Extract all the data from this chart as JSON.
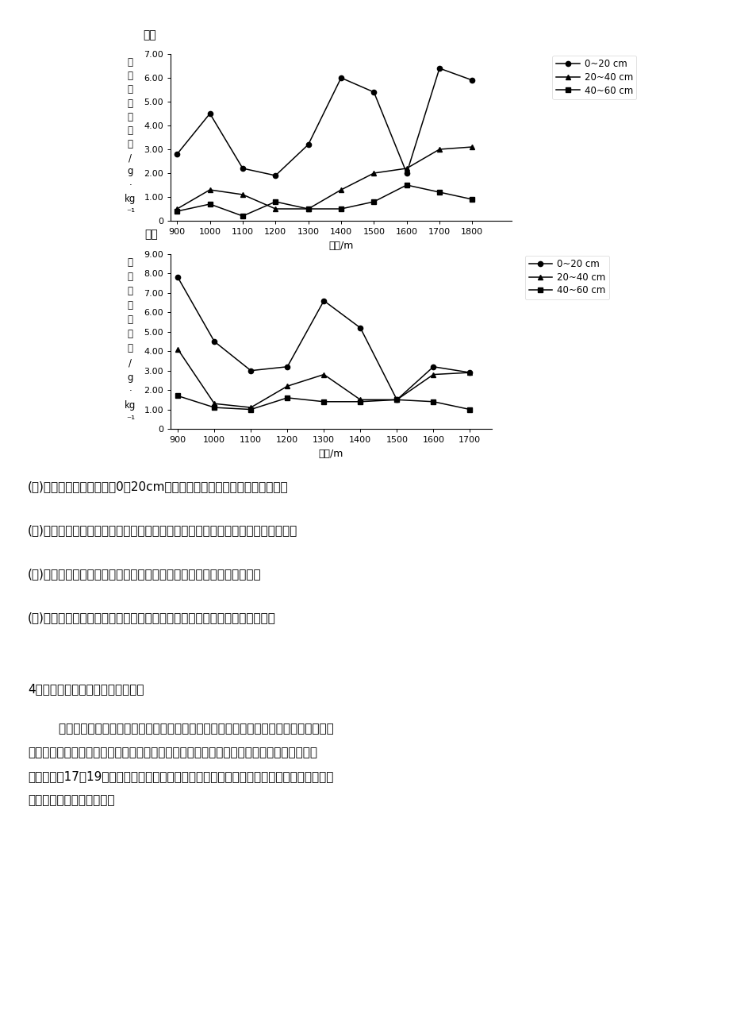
{
  "south_slope": {
    "title": "南坡",
    "x": [
      900,
      1000,
      1100,
      1200,
      1300,
      1400,
      1500,
      1600,
      1700,
      1800
    ],
    "y_0_20": [
      2.8,
      4.5,
      2.2,
      1.9,
      3.2,
      6.0,
      5.4,
      2.0,
      6.4,
      5.9
    ],
    "y_20_40": [
      0.5,
      1.3,
      1.1,
      0.5,
      0.5,
      1.3,
      2.0,
      2.2,
      3.0,
      3.1
    ],
    "y_40_60": [
      0.4,
      0.7,
      0.2,
      0.8,
      0.5,
      0.5,
      0.8,
      1.5,
      1.2,
      0.9
    ],
    "ylim": [
      0,
      7.0
    ],
    "yticks": [
      0,
      1.0,
      2.0,
      3.0,
      4.0,
      5.0,
      6.0,
      7.0
    ],
    "ytick_labels": [
      "0",
      "1.00",
      "2.00",
      "3.00",
      "4.00",
      "5.00",
      "6.00",
      "7.00"
    ],
    "xlim_min": 880,
    "xlim_max": 1920,
    "xlabel": "海拔/m"
  },
  "north_slope": {
    "title": "北坡",
    "x": [
      900,
      1000,
      1100,
      1200,
      1300,
      1400,
      1500,
      1600,
      1700
    ],
    "y_0_20": [
      7.8,
      4.5,
      3.0,
      3.2,
      6.6,
      5.2,
      1.5,
      3.2,
      2.9
    ],
    "y_20_40": [
      4.1,
      1.3,
      1.1,
      2.2,
      2.8,
      1.5,
      1.5,
      2.8,
      2.9
    ],
    "y_40_60": [
      1.7,
      1.1,
      1.0,
      1.6,
      1.4,
      1.4,
      1.5,
      1.4,
      1.0
    ],
    "ylim": [
      0,
      9.0
    ],
    "yticks": [
      0,
      1.0,
      2.0,
      3.0,
      4.0,
      5.0,
      6.0,
      7.0,
      8.0,
      9.0
    ],
    "ytick_labels": [
      "0",
      "1.00",
      "2.00",
      "3.00",
      "4.00",
      "5.00",
      "6.00",
      "7.00",
      "8.00",
      "9.00"
    ],
    "xlim_min": 880,
    "xlim_max": 1760,
    "xlabel": "海拔/m"
  },
  "legend_labels": [
    "0~20 cm",
    "20~40 cm",
    "40~60 cm"
  ],
  "ylabel_chars": [
    "土",
    "壤",
    "有",
    "机",
    "碳",
    "含",
    "量",
    "/",
    "g",
    "·",
    "kg",
    "⁻¹"
  ],
  "text_q1": "(１)与下层土壤相比，指出0～20cm土壤有机碳含量的特征，并简述原因。",
  "text_q2": "(２)指出南北坡土壤有机碳含量与海拔的关系，并从自然角度对此作出合理的解释。",
  "text_q3": "(３)气候变化导致各类极端天气增加，分析其对土壤有机碳含量的影响。",
  "text_q4": "(４)说明宝天曼自然保护区土壤有机碳含量对气候变化响应较为敏感的原因。",
  "footer": "4．阅读图文材料，完成下列要求。",
  "para1": "        冰川是由常年积雪形成的，具有流动性。白水一号冰川位于青藏高原东南缘、横断山最",
  "para2": "南端的玉龙雪山，是亚欧大陆最南边的小型山地冰川。白水一号冰川对气候变化极为敏感，",
  "para3": "自小冰期（17～19世纪）以来出现过不同程度的进退。下图示意白水一号冰川自小冰期以来",
  "para4": "不同时期的冰川末端海拔。",
  "background_color": "#ffffff"
}
